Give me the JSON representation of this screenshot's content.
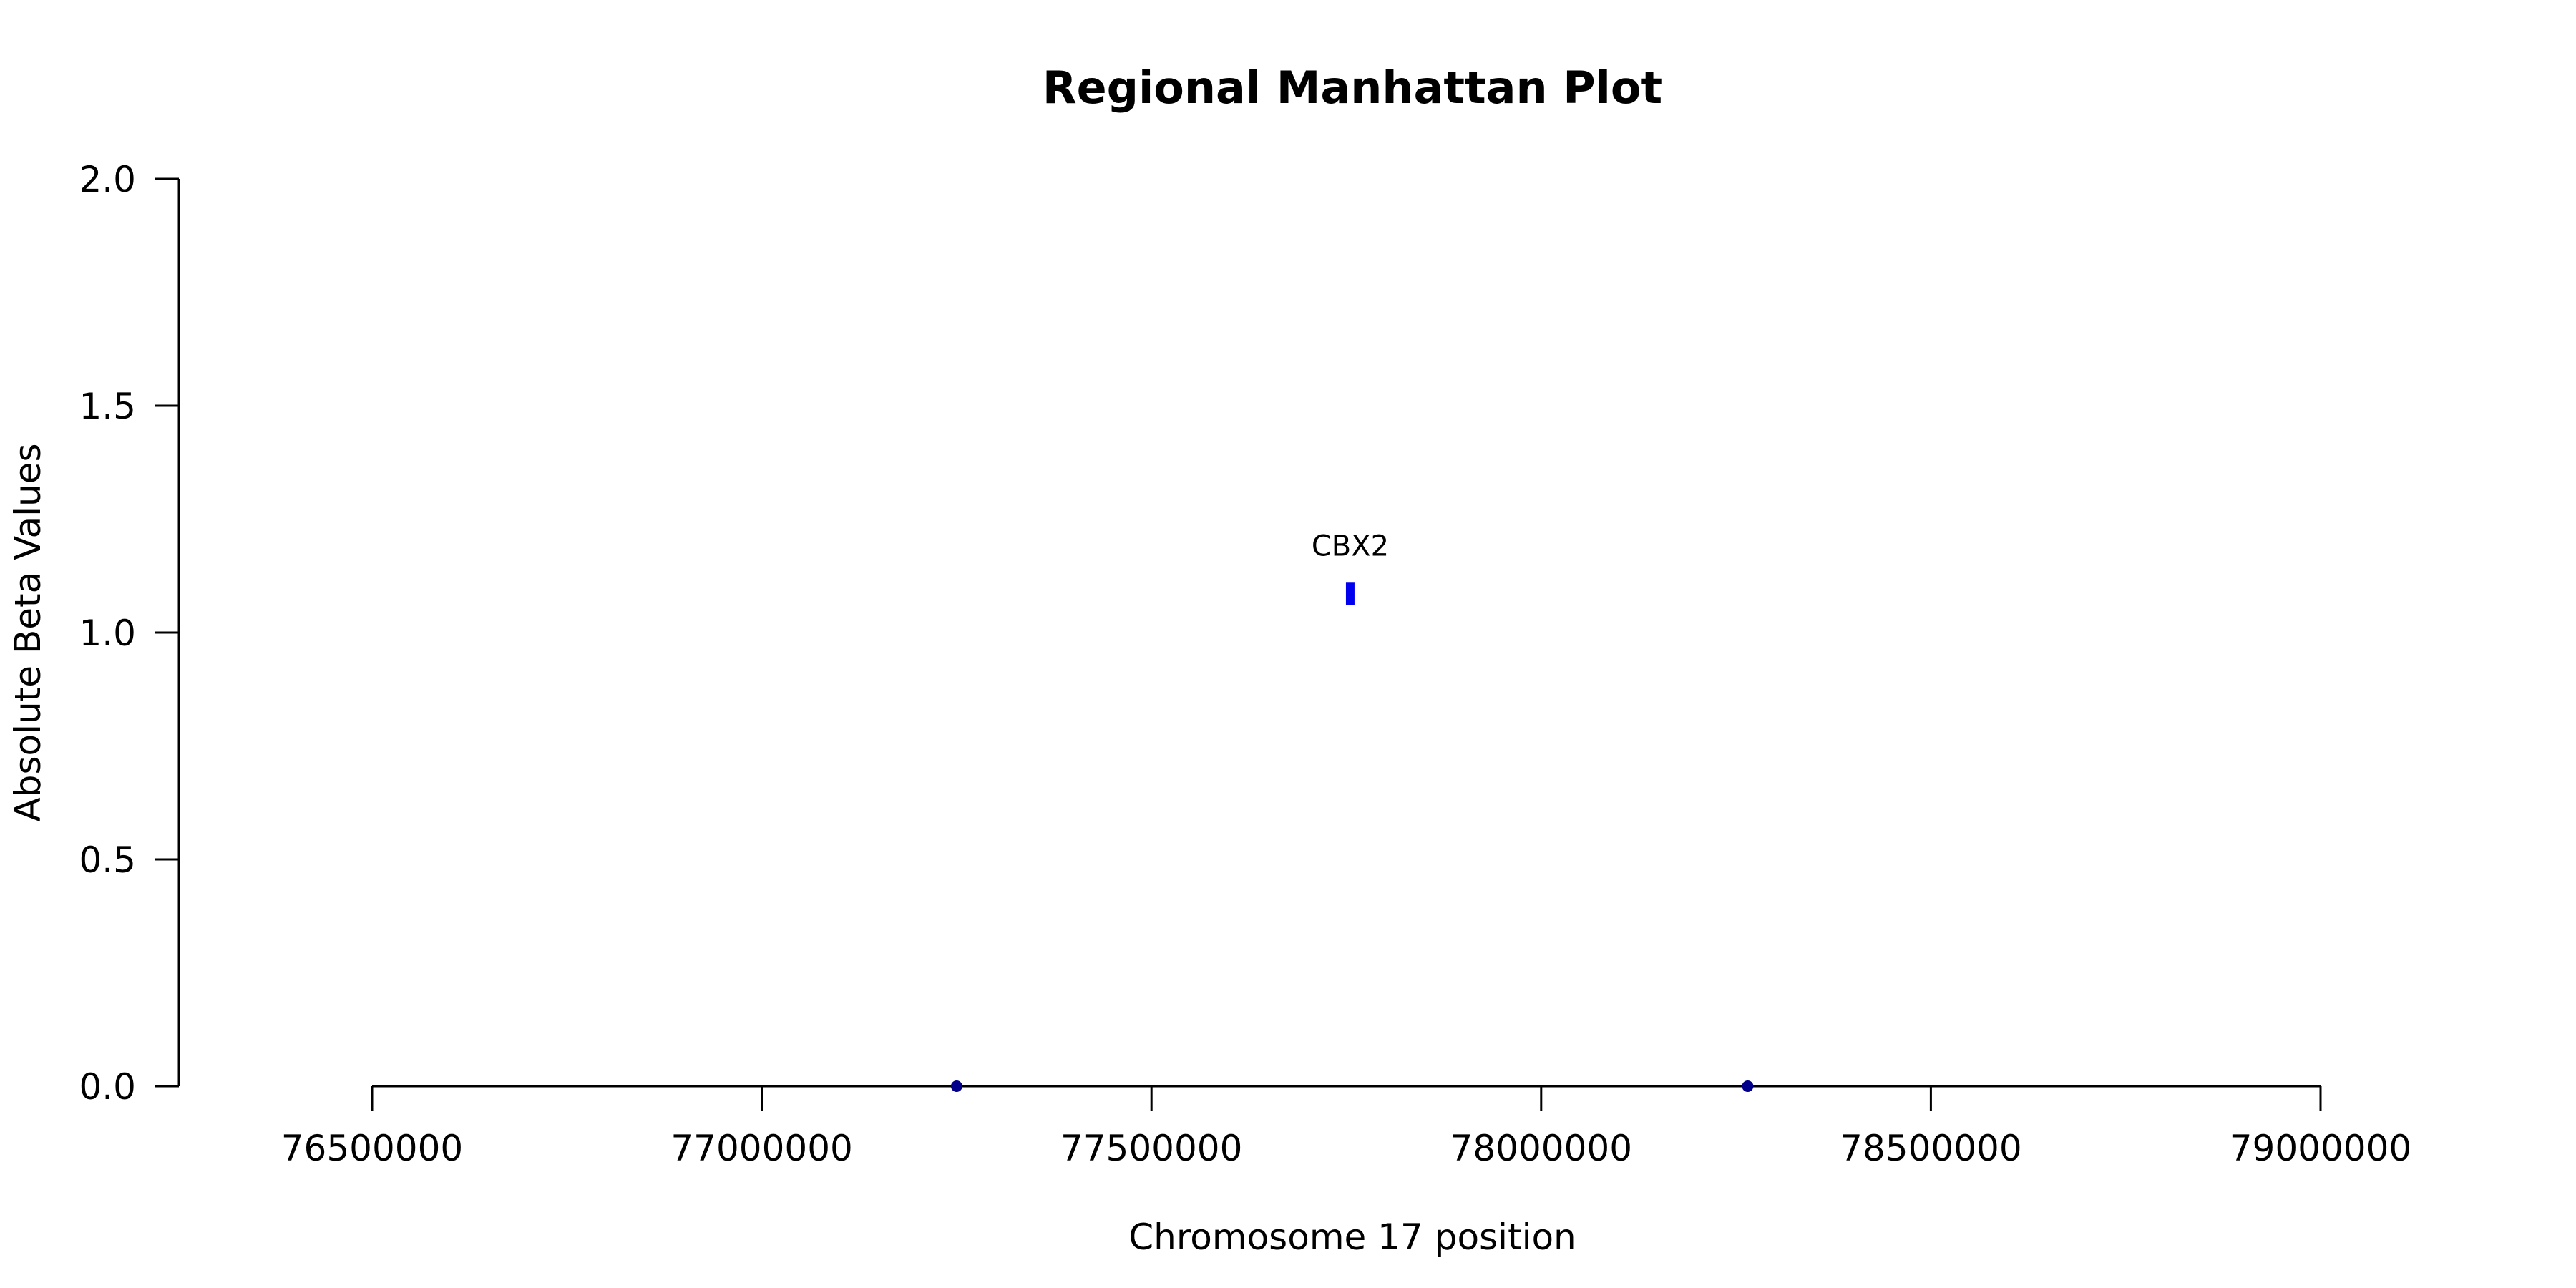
{
  "chart_data": {
    "type": "scatter",
    "title": "Regional Manhattan Plot",
    "xlabel": "Chromosome 17 position",
    "ylabel": "Absolute Beta Values",
    "xlim": [
      76500000,
      79000000
    ],
    "ylim": [
      0,
      2
    ],
    "x_ticks": [
      76500000,
      77000000,
      77500000,
      78000000,
      78500000,
      79000000
    ],
    "x_tick_labels": [
      "76500000",
      "77000000",
      "77500000",
      "78000000",
      "78500000",
      "79000000"
    ],
    "y_ticks": [
      0,
      0.5,
      1,
      1.5,
      2
    ],
    "y_tick_labels": [
      "0.0",
      "0.5",
      "1.0",
      "1.5",
      "2.0"
    ],
    "grid": false,
    "points": [
      {
        "x": 77250000,
        "y": 0,
        "color": "#00008b"
      },
      {
        "x": 78265000,
        "y": 0,
        "color": "#00008b"
      }
    ],
    "regions": [
      {
        "x": 77755000,
        "y_min": 1.06,
        "y_max": 1.11,
        "color": "#0000ee",
        "label": "CBX2"
      }
    ]
  }
}
